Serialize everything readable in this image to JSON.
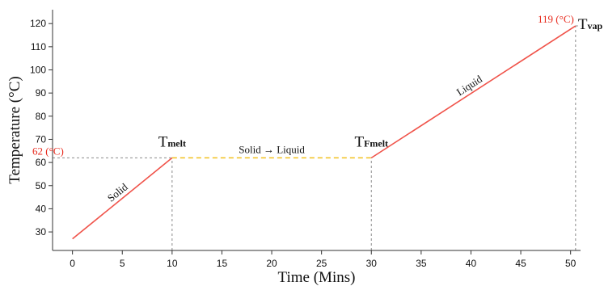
{
  "chart_data": {
    "type": "line",
    "xlabel": "Time (Mins)",
    "ylabel": "Temperature (°C)",
    "xlim": [
      -2,
      51
    ],
    "ylim": [
      22,
      126
    ],
    "xticks": [
      0,
      5,
      10,
      15,
      20,
      25,
      30,
      35,
      40,
      45,
      50
    ],
    "yticks": [
      30,
      40,
      50,
      60,
      70,
      80,
      90,
      100,
      110,
      120
    ],
    "grid": false,
    "segments": [
      {
        "name": "Solid",
        "color": "#f0534a",
        "dashed": false,
        "x": [
          0,
          10
        ],
        "y": [
          27,
          62
        ]
      },
      {
        "name": "Solid → Liquid",
        "color": "#f2c01e",
        "dashed": true,
        "x": [
          10,
          30
        ],
        "y": [
          62,
          62
        ]
      },
      {
        "name": "Liquid",
        "color": "#f0534a",
        "dashed": false,
        "x": [
          30,
          50.5
        ],
        "y": [
          62,
          119
        ]
      }
    ],
    "reference_lines": [
      {
        "orient": "h",
        "value": 62,
        "from": -2,
        "to": 10
      },
      {
        "orient": "v",
        "value": 10,
        "from": 22,
        "to": 62
      },
      {
        "orient": "v",
        "value": 30,
        "from": 22,
        "to": 62
      },
      {
        "orient": "v",
        "value": 50.5,
        "from": 22,
        "to": 119
      },
      {
        "orient": "h",
        "value": 119,
        "from": 50.5,
        "to": 51
      }
    ],
    "annotations": {
      "temp_low": "62 (°C)",
      "temp_high": "119 (°C)",
      "t_melt_main": "T",
      "t_melt_sub": "melt",
      "t_fmelt_main": "T",
      "t_fmelt_sub": "Fmelt",
      "t_vap_main": "T",
      "t_vap_sub": "vap"
    },
    "colors": {
      "line": "#f0534a",
      "transition": "#f2c01e",
      "highlight": "#e8291c",
      "reference": "#8a8a8a"
    }
  }
}
